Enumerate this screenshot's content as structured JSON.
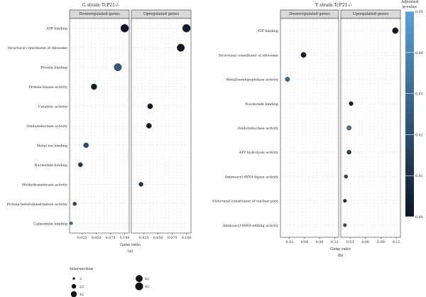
{
  "chart_data": [
    {
      "type": "scatter",
      "title": "G strain TcP21-/-",
      "caption": "(a)",
      "xlabel": "Gene ratio",
      "panels": [
        {
          "label": "Downregulated genes",
          "xlim": [
            0.003,
            0.108
          ],
          "ticks": [
            0.025,
            0.05,
            0.075,
            0.1
          ],
          "tick_labels": [
            "0.025",
            "0.050",
            "0.075",
            "0.100"
          ]
        },
        {
          "label": "Upregulated genes",
          "xlim": [
            0.003,
            0.108
          ],
          "ticks": [
            0.025,
            0.05,
            0.075,
            0.1
          ],
          "tick_labels": [
            "0.025",
            "0.050",
            "0.075",
            "0.100"
          ]
        }
      ],
      "categories": [
        "ATP binding",
        "Structural constituent of ribosome",
        "Protein binding",
        "Protein kinase activity",
        "Catalytic activity",
        "Oxidoreductase activity",
        "Metal ion binding",
        "Nucleotide binding",
        "Methyltransferase activity",
        "Protein heterodimerization activity",
        "Calmodulin binding"
      ],
      "points": [
        {
          "panel": 0,
          "category": "ATP binding",
          "gene_ratio": 0.1,
          "intersection": 82,
          "p_adj": 0.0
        },
        {
          "panel": 0,
          "category": "Protein binding",
          "gene_ratio": 0.088,
          "intersection": 72,
          "p_adj": 0.025
        },
        {
          "panel": 0,
          "category": "Protein kinase activity",
          "gene_ratio": 0.046,
          "intersection": 38,
          "p_adj": 0.002
        },
        {
          "panel": 0,
          "category": "Metal ion binding",
          "gene_ratio": 0.032,
          "intersection": 26,
          "p_adj": 0.02
        },
        {
          "panel": 0,
          "category": "Nucleotide binding",
          "gene_ratio": 0.022,
          "intersection": 18,
          "p_adj": 0.012
        },
        {
          "panel": 0,
          "category": "Protein heterodimerization activity",
          "gene_ratio": 0.012,
          "intersection": 10,
          "p_adj": 0.018
        },
        {
          "panel": 0,
          "category": "Calmodulin binding",
          "gene_ratio": 0.006,
          "intersection": 5,
          "p_adj": 0.035
        },
        {
          "panel": 1,
          "category": "ATP binding",
          "gene_ratio": 0.1,
          "intersection": 82,
          "p_adj": 0.003
        },
        {
          "panel": 1,
          "category": "Structural constituent of ribosome",
          "gene_ratio": 0.09,
          "intersection": 74,
          "p_adj": 0.001
        },
        {
          "panel": 1,
          "category": "Catalytic activity",
          "gene_ratio": 0.036,
          "intersection": 30,
          "p_adj": 0.002
        },
        {
          "panel": 1,
          "category": "Oxidoreductase activity",
          "gene_ratio": 0.034,
          "intersection": 28,
          "p_adj": 0.002
        },
        {
          "panel": 1,
          "category": "Methyltransferase activity",
          "gene_ratio": 0.02,
          "intersection": 17,
          "p_adj": 0.012
        }
      ]
    },
    {
      "type": "scatter",
      "title": "Y strain TcP21-/-",
      "caption": "(b)",
      "xlabel": "Gene ratio",
      "panels": [
        {
          "label": "Downregulated genes",
          "xlim": [
            0.012,
            0.128
          ],
          "ticks": [
            0.03,
            0.06,
            0.09,
            0.12
          ],
          "tick_labels": [
            "0.03",
            "0.06",
            "0.09",
            "0.12"
          ]
        },
        {
          "label": "Upregulated genes",
          "xlim": [
            0.012,
            0.128
          ],
          "ticks": [
            0.03,
            0.06,
            0.09,
            0.12
          ],
          "tick_labels": [
            "0.03",
            "0.06",
            "0.09",
            "0.12"
          ]
        }
      ],
      "categories": [
        "ATP binding",
        "Structural constituent of ribosome",
        "Metalloendopeptidase activity",
        "Nucleotide binding",
        "Oxidoreductase activity",
        "ATP hydrolysis activity",
        "Aminoacyl-tRNA ligase activity",
        "Structural constituent of nuclear pore",
        "Aminoacyl-tRNA editing activity"
      ],
      "points": [
        {
          "panel": 0,
          "category": "Structural constituent of ribosome",
          "gene_ratio": 0.058,
          "intersection": 30,
          "p_adj": 0.003
        },
        {
          "panel": 0,
          "category": "Metalloendopeptidase activity",
          "gene_ratio": 0.026,
          "intersection": 20,
          "p_adj": 0.03
        },
        {
          "panel": 1,
          "category": "ATP binding",
          "gene_ratio": 0.118,
          "intersection": 40,
          "p_adj": 0.001
        },
        {
          "panel": 1,
          "category": "Nucleotide binding",
          "gene_ratio": 0.032,
          "intersection": 16,
          "p_adj": 0.003
        },
        {
          "panel": 1,
          "category": "Oxidoreductase activity",
          "gene_ratio": 0.028,
          "intersection": 20,
          "p_adj": 0.033
        },
        {
          "panel": 1,
          "category": "ATP hydrolysis activity",
          "gene_ratio": 0.028,
          "intersection": 16,
          "p_adj": 0.015
        },
        {
          "panel": 1,
          "category": "Aminoacyl-tRNA ligase activity",
          "gene_ratio": 0.022,
          "intersection": 10,
          "p_adj": 0.018
        },
        {
          "panel": 1,
          "category": "Structural constituent of nuclear pore",
          "gene_ratio": 0.02,
          "intersection": 8,
          "p_adj": 0.008
        },
        {
          "panel": 1,
          "category": "Aminoacyl-tRNA editing activity",
          "gene_ratio": 0.02,
          "intersection": 8,
          "p_adj": 0.02
        }
      ]
    }
  ],
  "colorbar": {
    "title_lines": [
      "Adjusted",
      "p-value"
    ],
    "range": [
      0.0,
      0.05
    ],
    "ticks": [
      0.0,
      0.01,
      0.02,
      0.03,
      0.04,
      0.05
    ],
    "tick_labels": [
      "0.00",
      "0.01",
      "0.02",
      "0.03",
      "0.04",
      "0.05"
    ],
    "color_low": "#0b1622",
    "color_high": "#5aa2dc"
  },
  "size_legend": {
    "title": "Intersection",
    "entries": [
      {
        "value": 2,
        "label": "2"
      },
      {
        "value": 22,
        "label": "22"
      },
      {
        "value": 42,
        "label": "42"
      },
      {
        "value": 62,
        "label": "62"
      },
      {
        "value": 82,
        "label": "82"
      }
    ]
  },
  "colors": {
    "panel_header_bg": "#d9d9d9",
    "frame": "#333333",
    "grid_dot": "#b8b8b8",
    "point_stroke": "#2a2a2a"
  }
}
